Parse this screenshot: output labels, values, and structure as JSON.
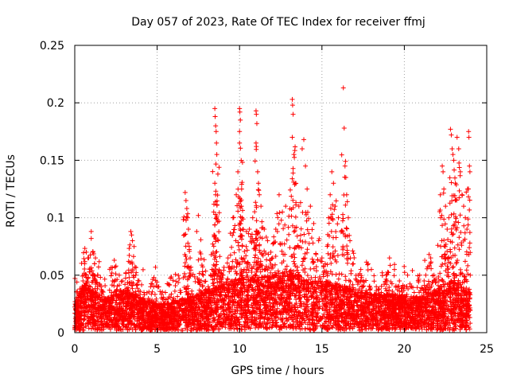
{
  "chart_data": {
    "type": "scatter",
    "title": "Day 057 of 2023, Rate Of TEC Index for receiver ffmj",
    "xlabel": "GPS time / hours",
    "ylabel": "ROTI / TECUs",
    "xlim": [
      0,
      25
    ],
    "ylim": [
      0,
      0.25
    ],
    "xticks": [
      0,
      5,
      10,
      15,
      20,
      25
    ],
    "xtick_labels": [
      "0",
      "5",
      "10",
      "15",
      "20",
      "25"
    ],
    "yticks": [
      0,
      0.05,
      0.1,
      0.15,
      0.2,
      0.25
    ],
    "ytick_labels": [
      "0",
      "0.05",
      "0.1",
      "0.15",
      "0.2",
      "0.25"
    ],
    "grid": true,
    "marker": "+",
    "color": "#ff0000",
    "series": [
      {
        "name": "ROTI",
        "points": [
          [
            0.1,
            0.03
          ],
          [
            0.3,
            0.038
          ],
          [
            0.5,
            0.045
          ],
          [
            0.6,
            0.06
          ],
          [
            0.7,
            0.07
          ],
          [
            0.8,
            0.065
          ],
          [
            0.9,
            0.055
          ],
          [
            1.0,
            0.088
          ],
          [
            1.0,
            0.082
          ],
          [
            1.1,
            0.07
          ],
          [
            1.2,
            0.06
          ],
          [
            1.4,
            0.05
          ],
          [
            1.6,
            0.04
          ],
          [
            2.0,
            0.03
          ],
          [
            2.3,
            0.045
          ],
          [
            2.4,
            0.063
          ],
          [
            2.5,
            0.058
          ],
          [
            2.7,
            0.05
          ],
          [
            2.9,
            0.045
          ],
          [
            3.1,
            0.052
          ],
          [
            3.3,
            0.048
          ],
          [
            3.4,
            0.088
          ],
          [
            3.45,
            0.085
          ],
          [
            3.5,
            0.08
          ],
          [
            3.6,
            0.075
          ],
          [
            3.7,
            0.05
          ],
          [
            3.9,
            0.045
          ],
          [
            4.2,
            0.035
          ],
          [
            4.6,
            0.04
          ],
          [
            4.8,
            0.048
          ],
          [
            4.9,
            0.057
          ],
          [
            5.1,
            0.04
          ],
          [
            5.5,
            0.035
          ],
          [
            6.0,
            0.03
          ],
          [
            6.4,
            0.035
          ],
          [
            6.7,
            0.122
          ],
          [
            6.75,
            0.115
          ],
          [
            6.8,
            0.108
          ],
          [
            6.85,
            0.1
          ],
          [
            6.9,
            0.09
          ],
          [
            6.95,
            0.075
          ],
          [
            7.0,
            0.065
          ],
          [
            7.05,
            0.057
          ],
          [
            7.4,
            0.088
          ],
          [
            7.5,
            0.102
          ],
          [
            7.6,
            0.07
          ],
          [
            7.8,
            0.05
          ],
          [
            8.1,
            0.04
          ],
          [
            8.4,
            0.07
          ],
          [
            8.45,
            0.085
          ],
          [
            8.5,
            0.195
          ],
          [
            8.52,
            0.188
          ],
          [
            8.55,
            0.18
          ],
          [
            8.58,
            0.175
          ],
          [
            8.6,
            0.165
          ],
          [
            8.62,
            0.155
          ],
          [
            8.5,
            0.13
          ],
          [
            8.55,
            0.12
          ],
          [
            8.6,
            0.1
          ],
          [
            8.7,
            0.08
          ],
          [
            9.0,
            0.05
          ],
          [
            9.3,
            0.065
          ],
          [
            9.6,
            0.1
          ],
          [
            9.8,
            0.12
          ],
          [
            9.9,
            0.14
          ],
          [
            10.0,
            0.195
          ],
          [
            10.02,
            0.192
          ],
          [
            10.05,
            0.185
          ],
          [
            10.0,
            0.175
          ],
          [
            10.0,
            0.165
          ],
          [
            10.1,
            0.11
          ],
          [
            10.15,
            0.1
          ],
          [
            10.2,
            0.09
          ],
          [
            10.4,
            0.075
          ],
          [
            10.6,
            0.09
          ],
          [
            10.8,
            0.1
          ],
          [
            11.0,
            0.193
          ],
          [
            11.02,
            0.19
          ],
          [
            11.05,
            0.182
          ],
          [
            11.0,
            0.165
          ],
          [
            11.02,
            0.162
          ],
          [
            11.1,
            0.14
          ],
          [
            11.15,
            0.13
          ],
          [
            11.2,
            0.12
          ],
          [
            11.3,
            0.11
          ],
          [
            11.5,
            0.09
          ],
          [
            11.7,
            0.08
          ],
          [
            11.9,
            0.07
          ],
          [
            12.0,
            0.065
          ],
          [
            12.2,
            0.09
          ],
          [
            12.4,
            0.12
          ],
          [
            12.6,
            0.105
          ],
          [
            12.8,
            0.11
          ],
          [
            13.2,
            0.203
          ],
          [
            13.22,
            0.198
          ],
          [
            13.25,
            0.19
          ],
          [
            13.2,
            0.17
          ],
          [
            13.3,
            0.155
          ],
          [
            13.4,
            0.13
          ],
          [
            13.6,
            0.11
          ],
          [
            13.8,
            0.16
          ],
          [
            13.9,
            0.168
          ],
          [
            14.0,
            0.145
          ],
          [
            14.1,
            0.125
          ],
          [
            14.3,
            0.11
          ],
          [
            14.5,
            0.095
          ],
          [
            14.8,
            0.08
          ],
          [
            15.0,
            0.065
          ],
          [
            15.2,
            0.06
          ],
          [
            15.4,
            0.1
          ],
          [
            15.5,
            0.12
          ],
          [
            15.6,
            0.14
          ],
          [
            15.7,
            0.13
          ],
          [
            15.8,
            0.11
          ],
          [
            16.0,
            0.1
          ],
          [
            16.3,
            0.213
          ],
          [
            16.35,
            0.178
          ],
          [
            16.4,
            0.145
          ],
          [
            16.45,
            0.135
          ],
          [
            16.5,
            0.12
          ],
          [
            16.6,
            0.1
          ],
          [
            16.7,
            0.08
          ],
          [
            16.9,
            0.06
          ],
          [
            17.2,
            0.05
          ],
          [
            17.5,
            0.045
          ],
          [
            17.8,
            0.06
          ],
          [
            18.0,
            0.055
          ],
          [
            18.3,
            0.04
          ],
          [
            18.6,
            0.035
          ],
          [
            18.9,
            0.05
          ],
          [
            19.1,
            0.065
          ],
          [
            19.4,
            0.055
          ],
          [
            19.7,
            0.045
          ],
          [
            20.0,
            0.04
          ],
          [
            20.2,
            0.05
          ],
          [
            20.6,
            0.035
          ],
          [
            20.9,
            0.03
          ],
          [
            21.2,
            0.045
          ],
          [
            21.3,
            0.05
          ],
          [
            21.5,
            0.068
          ],
          [
            21.6,
            0.065
          ],
          [
            21.8,
            0.05
          ],
          [
            22.0,
            0.035
          ],
          [
            22.1,
            0.045
          ],
          [
            22.2,
            0.1
          ],
          [
            22.3,
            0.145
          ],
          [
            22.35,
            0.14
          ],
          [
            22.4,
            0.125
          ],
          [
            22.5,
            0.11
          ],
          [
            22.6,
            0.09
          ],
          [
            22.7,
            0.1
          ],
          [
            22.8,
            0.177
          ],
          [
            22.85,
            0.172
          ],
          [
            22.9,
            0.16
          ],
          [
            22.95,
            0.155
          ],
          [
            23.0,
            0.15
          ],
          [
            23.1,
            0.13
          ],
          [
            23.2,
            0.17
          ],
          [
            23.3,
            0.16
          ],
          [
            23.4,
            0.14
          ],
          [
            23.5,
            0.12
          ],
          [
            23.6,
            0.11
          ],
          [
            23.7,
            0.1
          ],
          [
            23.8,
            0.09
          ],
          [
            23.9,
            0.175
          ],
          [
            23.92,
            0.17
          ],
          [
            23.95,
            0.145
          ],
          [
            23.98,
            0.14
          ],
          [
            24.0,
            0.05
          ]
        ]
      }
    ],
    "dense_bands": [
      [
        0.0,
        0.02
      ],
      [
        0.5,
        0.035
      ],
      [
        1.0,
        0.03
      ],
      [
        2.0,
        0.025
      ],
      [
        3.0,
        0.03
      ],
      [
        4.0,
        0.025
      ],
      [
        5.0,
        0.02
      ],
      [
        6.0,
        0.022
      ],
      [
        7.0,
        0.025
      ],
      [
        8.0,
        0.03
      ],
      [
        9.0,
        0.035
      ],
      [
        10.0,
        0.04
      ],
      [
        11.0,
        0.04
      ],
      [
        12.0,
        0.042
      ],
      [
        13.0,
        0.045
      ],
      [
        14.0,
        0.04
      ],
      [
        15.0,
        0.038
      ],
      [
        16.0,
        0.035
      ],
      [
        17.0,
        0.03
      ],
      [
        18.0,
        0.028
      ],
      [
        19.0,
        0.028
      ],
      [
        20.0,
        0.026
      ],
      [
        21.0,
        0.025
      ],
      [
        22.0,
        0.032
      ],
      [
        23.0,
        0.038
      ],
      [
        24.0,
        0.03
      ]
    ]
  }
}
